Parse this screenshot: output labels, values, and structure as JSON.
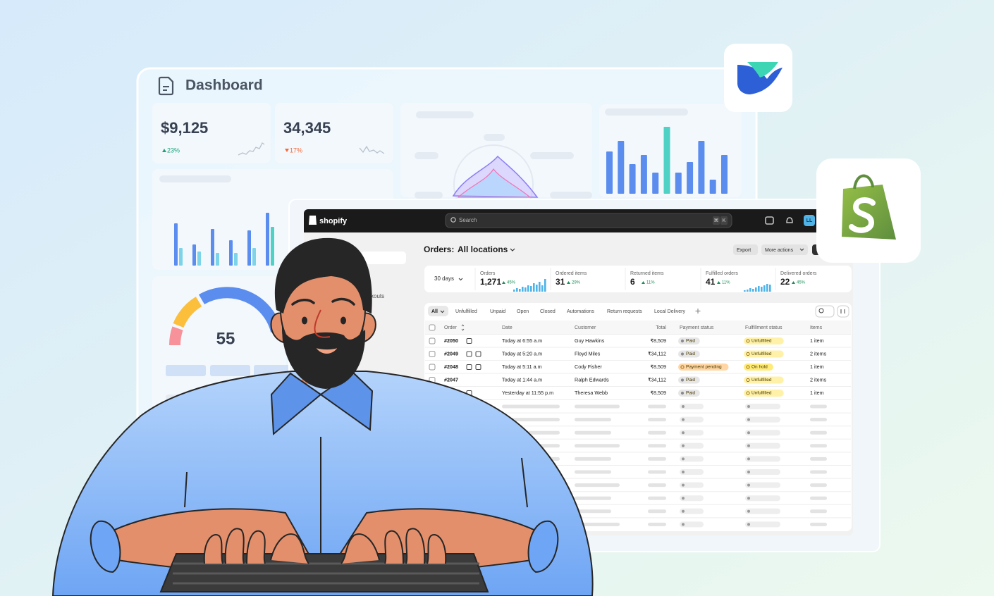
{
  "dashboard": {
    "title": "Dashboard",
    "cards": [
      {
        "value": "$9,125",
        "change": "23%"
      },
      {
        "value": "34,345",
        "change": "17%"
      }
    ],
    "gauge": "55"
  },
  "shopify": {
    "brand": "shopify",
    "search": "Search",
    "shortcut": [
      "⌘",
      "K"
    ],
    "avatar": "LL",
    "sidebar": "ckouts",
    "heading": "Orders:",
    "location": "All locations",
    "buttons": [
      "Export",
      "More actions"
    ],
    "period": "30 days",
    "stats": [
      {
        "label": "Orders",
        "value": "1,271",
        "change": "45%"
      },
      {
        "label": "Ordered items",
        "value": "31",
        "change": "29%"
      },
      {
        "label": "Returned items",
        "value": "6",
        "change": "11%"
      },
      {
        "label": "Fulfilled orders",
        "value": "41",
        "change": "11%"
      },
      {
        "label": "Delivered orders",
        "value": "22",
        "change": "45%"
      }
    ],
    "tabs": [
      "All",
      "Unfulfilled",
      "Unpaid",
      "Open",
      "Closed",
      "Automations",
      "Return requests",
      "Local Delivery"
    ],
    "columns": [
      "Order",
      "Date",
      "Customer",
      "Total",
      "Payment status",
      "Fulfillment status",
      "Items"
    ],
    "rows": [
      [
        "#2050",
        "Today at 6:55 a.m",
        "Guy Hawkins",
        "₹8,509",
        "Paid",
        "Unfulfilled",
        "1 item"
      ],
      [
        "#2049",
        "Today at 5:20 a.m",
        "Floyd Miles",
        "₹34,112",
        "Paid",
        "Unfulfilled",
        "2 items"
      ],
      [
        "#2048",
        "Today at 5:11 a.m",
        "Cody Fisher",
        "₹8,509",
        "Payment pending",
        "On hold",
        "1 item"
      ],
      [
        "#2047",
        "Today at 1:44 a.m",
        "Ralph Edwards",
        "₹34,112",
        "Paid",
        "Unfulfilled",
        "2 items"
      ],
      [
        null,
        "Yesterday at 11:55 p.m",
        "Theresa Webb",
        "₹8,509",
        "Paid",
        "Unfulfilled",
        "1 item"
      ]
    ]
  }
}
